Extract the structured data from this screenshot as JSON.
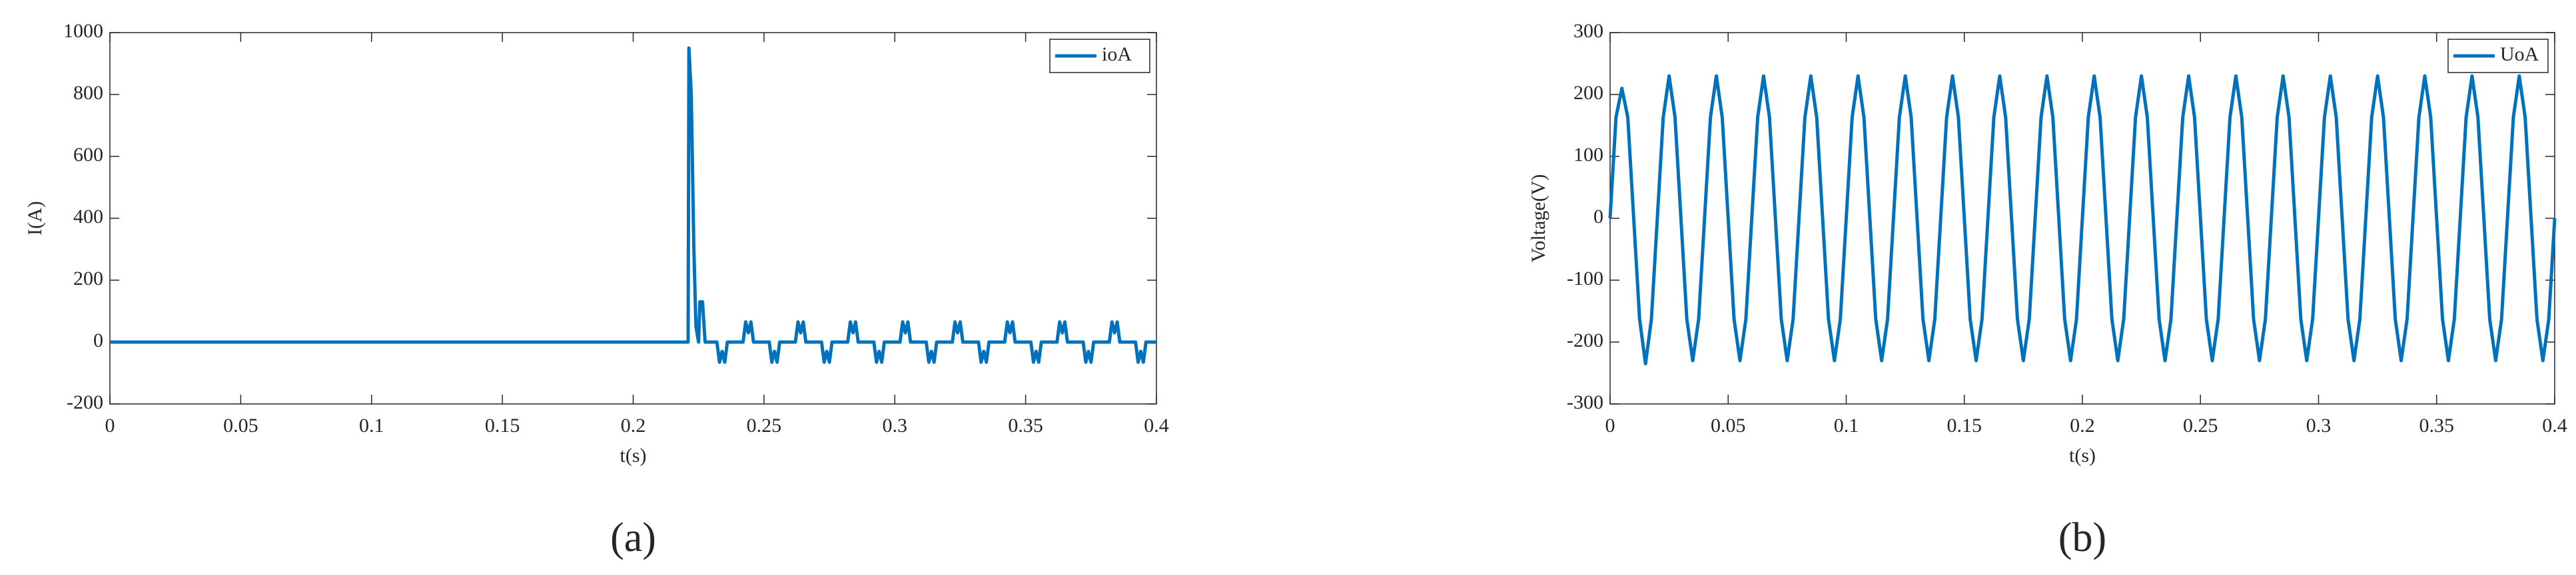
{
  "chart_data": [
    {
      "type": "line",
      "label": "(a)",
      "xlabel": "t(s)",
      "ylabel": "I(A)",
      "x": [
        0,
        0.221,
        0.2213,
        0.2222,
        0.2232,
        0.224,
        0.225,
        0.2255,
        0.2265,
        0.2275,
        0.232,
        0.233,
        0.234,
        0.235,
        0.236,
        0.242,
        0.243,
        0.244,
        0.245,
        0.246,
        0.252,
        0.253,
        0.254,
        0.255,
        0.256,
        0.262,
        0.263,
        0.264,
        0.265,
        0.266,
        0.272,
        0.273,
        0.274,
        0.275,
        0.276,
        0.282,
        0.283,
        0.284,
        0.285,
        0.286,
        0.292,
        0.293,
        0.294,
        0.295,
        0.296,
        0.302,
        0.303,
        0.304,
        0.305,
        0.306,
        0.312,
        0.313,
        0.314,
        0.315,
        0.316,
        0.322,
        0.323,
        0.324,
        0.325,
        0.326,
        0.332,
        0.333,
        0.334,
        0.335,
        0.336,
        0.342,
        0.343,
        0.344,
        0.345,
        0.346,
        0.352,
        0.353,
        0.354,
        0.355,
        0.356,
        0.362,
        0.363,
        0.364,
        0.365,
        0.366,
        0.372,
        0.373,
        0.374,
        0.375,
        0.376,
        0.382,
        0.383,
        0.384,
        0.385,
        0.386,
        0.392,
        0.393,
        0.394,
        0.395,
        0.396,
        0.4
      ],
      "series": [
        {
          "name": "ioA",
          "color": "#0072bd",
          "values": [
            0,
            0,
            950,
            800,
            300,
            50,
            0,
            130,
            130,
            0,
            0,
            -65,
            -30,
            -65,
            0,
            0,
            65,
            30,
            65,
            0,
            0,
            -65,
            -30,
            -65,
            0,
            0,
            65,
            30,
            65,
            0,
            0,
            -65,
            -30,
            -65,
            0,
            0,
            65,
            30,
            65,
            0,
            0,
            -65,
            -30,
            -65,
            0,
            0,
            65,
            30,
            65,
            0,
            0,
            -65,
            -30,
            -65,
            0,
            0,
            65,
            30,
            65,
            0,
            0,
            -65,
            -30,
            -65,
            0,
            0,
            65,
            30,
            65,
            0,
            0,
            -65,
            -30,
            -65,
            0,
            0,
            65,
            30,
            65,
            0,
            0,
            -65,
            -30,
            -65,
            0,
            0,
            65,
            30,
            65,
            0,
            0,
            -65,
            -30,
            -65,
            0,
            0
          ]
        }
      ],
      "xlim": [
        0,
        0.4
      ],
      "ylim": [
        -200,
        1000
      ],
      "xticks": [
        0,
        0.05,
        0.1,
        0.15,
        0.2,
        0.25,
        0.3,
        0.35,
        0.4
      ],
      "yticks": [
        -200,
        0,
        200,
        400,
        600,
        800,
        1000
      ],
      "legend": "upper right"
    },
    {
      "type": "line",
      "label": "(b)",
      "xlabel": "t(s)",
      "ylabel": "Voltage(V)",
      "x": [
        0,
        0.0025,
        0.005,
        0.0075,
        0.01,
        0.0125,
        0.015,
        0.0175,
        0.02,
        0.0225,
        0.025,
        0.0275,
        0.03,
        0.0325,
        0.035,
        0.0375,
        0.04,
        0.0425,
        0.045,
        0.0475,
        0.05,
        0.0525,
        0.055,
        0.0575,
        0.06,
        0.0625,
        0.065,
        0.0675,
        0.07,
        0.0725,
        0.075,
        0.0775,
        0.08,
        0.0825,
        0.085,
        0.0875,
        0.09,
        0.0925,
        0.095,
        0.0975,
        0.1,
        0.1025,
        0.105,
        0.1075,
        0.11,
        0.1125,
        0.115,
        0.1175,
        0.12,
        0.1225,
        0.125,
        0.1275,
        0.13,
        0.1325,
        0.135,
        0.1375,
        0.14,
        0.1425,
        0.145,
        0.1475,
        0.15,
        0.1525,
        0.155,
        0.1575,
        0.16,
        0.1625,
        0.165,
        0.1675,
        0.17,
        0.1725,
        0.175,
        0.1775,
        0.18,
        0.1825,
        0.185,
        0.1875,
        0.19,
        0.1925,
        0.195,
        0.1975,
        0.2,
        0.2025,
        0.205,
        0.2075,
        0.21,
        0.2125,
        0.215,
        0.2175,
        0.22,
        0.2225,
        0.225,
        0.2275,
        0.23,
        0.2325,
        0.235,
        0.2375,
        0.24,
        0.2425,
        0.245,
        0.2475,
        0.25,
        0.2525,
        0.255,
        0.2575,
        0.26,
        0.2625,
        0.265,
        0.2675,
        0.27,
        0.2725,
        0.275,
        0.2775,
        0.28,
        0.2825,
        0.285,
        0.2875,
        0.29,
        0.2925,
        0.295,
        0.2975,
        0.3,
        0.3025,
        0.305,
        0.3075,
        0.31,
        0.3125,
        0.315,
        0.3175,
        0.32,
        0.3225,
        0.325,
        0.3275,
        0.33,
        0.3325,
        0.335,
        0.3375,
        0.34,
        0.3425,
        0.345,
        0.3475,
        0.35,
        0.3525,
        0.355,
        0.3575,
        0.36,
        0.3625,
        0.365,
        0.3675,
        0.37,
        0.3725,
        0.375,
        0.3775,
        0.38,
        0.3825,
        0.385,
        0.3875,
        0.39,
        0.3925,
        0.395,
        0.3975,
        0.4
      ],
      "series": [
        {
          "name": "UoA",
          "color": "#0072bd",
          "values": [
            0,
            163,
            210,
            163,
            0,
            -163,
            -235,
            -163,
            0,
            163,
            230,
            163,
            0,
            -163,
            -230,
            -163,
            0,
            163,
            230,
            163,
            0,
            -163,
            -230,
            -163,
            0,
            163,
            230,
            163,
            0,
            -163,
            -230,
            -163,
            0,
            163,
            230,
            163,
            0,
            -163,
            -230,
            -163,
            0,
            163,
            230,
            163,
            0,
            -163,
            -230,
            -163,
            0,
            163,
            230,
            163,
            0,
            -163,
            -230,
            -163,
            0,
            163,
            230,
            163,
            0,
            -163,
            -230,
            -163,
            0,
            163,
            230,
            163,
            0,
            -163,
            -230,
            -163,
            0,
            163,
            230,
            163,
            0,
            -163,
            -230,
            -163,
            0,
            163,
            230,
            163,
            0,
            -163,
            -230,
            -163,
            0,
            163,
            230,
            163,
            0,
            -163,
            -230,
            -163,
            0,
            163,
            230,
            163,
            0,
            -163,
            -230,
            -163,
            0,
            163,
            230,
            163,
            0,
            -163,
            -230,
            -163,
            0,
            163,
            230,
            163,
            0,
            -163,
            -230,
            -163,
            0,
            163,
            230,
            163,
            0,
            -163,
            -230,
            -163,
            0,
            163,
            230,
            163,
            0,
            -163,
            -230,
            -163,
            0,
            163,
            230,
            163,
            0,
            -163,
            -230,
            -163,
            0,
            163,
            230,
            163,
            0,
            -163,
            -230,
            -163,
            0,
            163,
            230,
            163,
            0,
            -163,
            -230,
            -163,
            0
          ]
        }
      ],
      "xlim": [
        0,
        0.4
      ],
      "ylim": [
        -300,
        300
      ],
      "xticks": [
        0,
        0.05,
        0.1,
        0.15,
        0.2,
        0.25,
        0.3,
        0.35,
        0.4
      ],
      "yticks": [
        -300,
        -200,
        -100,
        0,
        100,
        200,
        300
      ],
      "legend": "upper right"
    }
  ]
}
